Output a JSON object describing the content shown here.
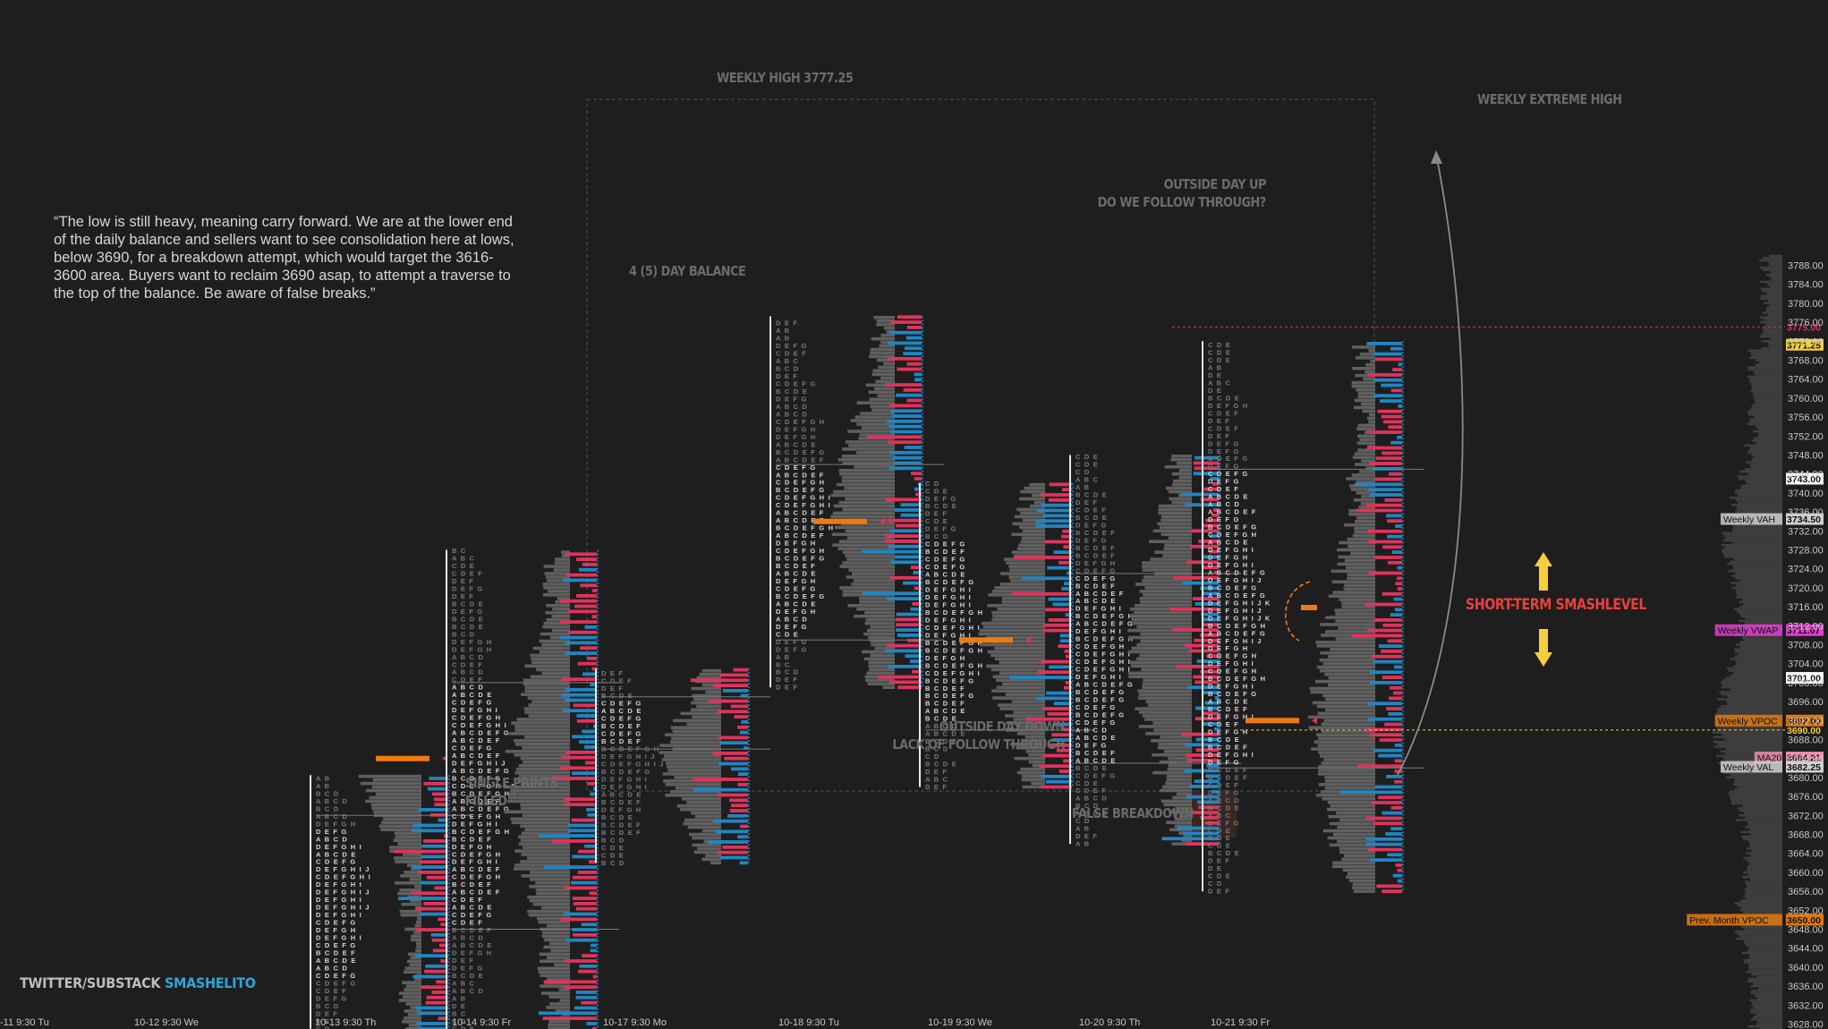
{
  "quote": "“The low is still heavy, meaning carry forward. We are at the lower end of the daily balance and sellers want to see consolidation here at lows, below 3690, for a breakdown attempt, which would target the 3616-3600 area. Buyers want to reclaim 3690 asap, to attempt a traverse to the top of the balance. Be aware of false breaks.”",
  "watermark": {
    "prefix": "TWITTER/SUBSTACK ",
    "handle": "SMASHELITO"
  },
  "annotations": {
    "weekly_high": "WEEKLY HIGH 3777.25",
    "weekly_extreme_high": "WEEKLY EXTREME HIGH",
    "four_day_balance": "4 (5) DAY BALANCE",
    "outside_day_up_1": "OUTSIDE DAY UP",
    "outside_day_up_2": "DO WE FOLLOW THROUGH?",
    "single_prints_1": "SINGLE PRINTS",
    "single_prints_2": "FILLED",
    "outside_day_down_1": "OUTSIDE DAY DOWN",
    "outside_day_down_2": "LACK OF FOLLOW THROUGH",
    "false_breakdown": "FALSE BREAKDOWN",
    "smashlevel": "SHORT-TERM SMASHLEVEL"
  },
  "colors": {
    "background": "#1e1e1e",
    "volume_red": "#e0335b",
    "volume_blue": "#1f86c4",
    "profile_gray": "#5f5f5f",
    "poc_orange": "#f07a10",
    "smashlevel_red": "#e8413f",
    "arrow_yellow": "#f5cf3a"
  },
  "chart_data": {
    "type": "market-profile",
    "ylim": [
      3626,
      3790
    ],
    "y_ticks": [
      3628,
      3632,
      3636,
      3640,
      3644,
      3648,
      3652,
      3656,
      3660,
      3664,
      3668,
      3672,
      3676,
      3680,
      3684,
      3688,
      3692,
      3696,
      3700,
      3704,
      3708,
      3712,
      3716,
      3720,
      3724,
      3728,
      3732,
      3736,
      3740,
      3744,
      3748,
      3752,
      3756,
      3760,
      3764,
      3768,
      3772,
      3776,
      3780,
      3784,
      3788
    ],
    "x_labels": [
      "-11  9:30 Tu",
      "10-12  9:30 We",
      "10-13  9:30 Th",
      "10-14  9:30 Fr",
      "10-17  9:30 Mo",
      "10-18  9:30 Tu",
      "10-19  9:30 We",
      "10-20  9:30 Th",
      "10-21  9:30 Fr"
    ],
    "sessions": [
      {
        "date": "10-13",
        "low": 3627,
        "high": 3680.5,
        "poc": 3684,
        "val": 3672
      },
      {
        "date": "10-14",
        "low": 3627,
        "high": 3728,
        "vah": 3700,
        "val": 3648
      },
      {
        "date": "10-17",
        "low": 3662,
        "high": 3703,
        "vah": 3697,
        "val": 3686
      },
      {
        "date": "10-18",
        "low": 3699,
        "high": 3777.25,
        "vah": 3746,
        "poc": 3734,
        "val": 3709
      },
      {
        "date": "10-19",
        "low": 3678,
        "high": 3742,
        "poc": 3709,
        "val": 3690
      },
      {
        "date": "10-20",
        "low": 3666,
        "high": 3748,
        "vah": 3723,
        "val": 3683
      },
      {
        "date": "10-21",
        "low": 3656,
        "high": 3772,
        "vah": 3745,
        "poc": 3692,
        "val": 3682
      }
    ],
    "levels": [
      {
        "name": "",
        "value": 3775.0,
        "label": "3775.00",
        "color": "#e0335b",
        "style": "dotted"
      },
      {
        "name": "",
        "value": 3771.25,
        "label": "3771.25",
        "color": "#f5cf3a"
      },
      {
        "name": "",
        "value": 3743.0,
        "label": "3743.00",
        "color": "#ffffff"
      },
      {
        "name": "Weekly VAH",
        "value": 3734.5,
        "label": "3734.50",
        "color": "#cfcfcf"
      },
      {
        "name": "Weekly VWAP",
        "value": 3711.07,
        "label": "3711.07",
        "color": "#e03fcf"
      },
      {
        "name": "",
        "value": 3701.0,
        "label": "3701.00",
        "color": "#ffffff"
      },
      {
        "name": "Weekly VPOC",
        "value": 3692.0,
        "label": "3692.00",
        "color": "#e07a10"
      },
      {
        "name": "",
        "value": 3690.0,
        "label": "3690.00",
        "color": "#f5cf3a",
        "style": "dotted"
      },
      {
        "name": "MA20",
        "value": 3684.21,
        "label": "3684.21",
        "color": "#f08fb0"
      },
      {
        "name": "Weekly VAL",
        "value": 3682.25,
        "label": "3682.25",
        "color": "#cfcfcf"
      },
      {
        "name": "Prev. Month VPOC",
        "value": 3650.0,
        "label": "3650.00",
        "color": "#e07a10"
      }
    ]
  }
}
